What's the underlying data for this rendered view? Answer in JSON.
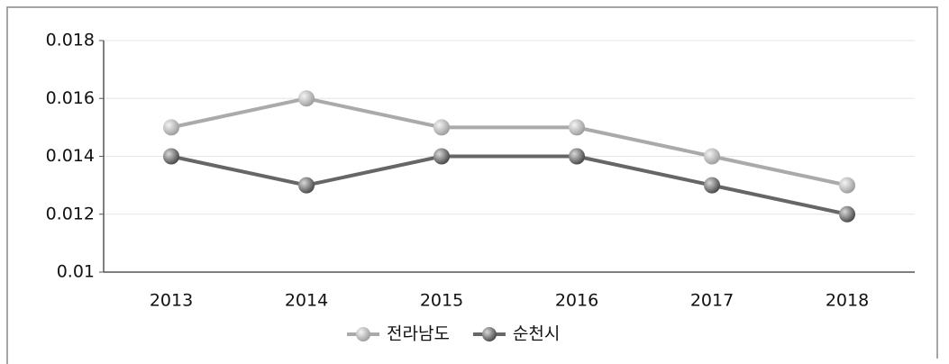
{
  "chart_data": {
    "type": "line",
    "categories": [
      "2013",
      "2014",
      "2015",
      "2016",
      "2017",
      "2018"
    ],
    "series": [
      {
        "name": "전라남도",
        "color": "#aaaaaa",
        "values": [
          0.015,
          0.016,
          0.015,
          0.015,
          0.014,
          0.013
        ]
      },
      {
        "name": "순천시",
        "color": "#666666",
        "values": [
          0.014,
          0.013,
          0.014,
          0.014,
          0.013,
          0.012
        ]
      }
    ],
    "ylim": [
      0.01,
      0.018
    ],
    "yticks": [
      0.01,
      0.012,
      0.014,
      0.016,
      0.018
    ],
    "grid": true,
    "legend": "bottom"
  }
}
